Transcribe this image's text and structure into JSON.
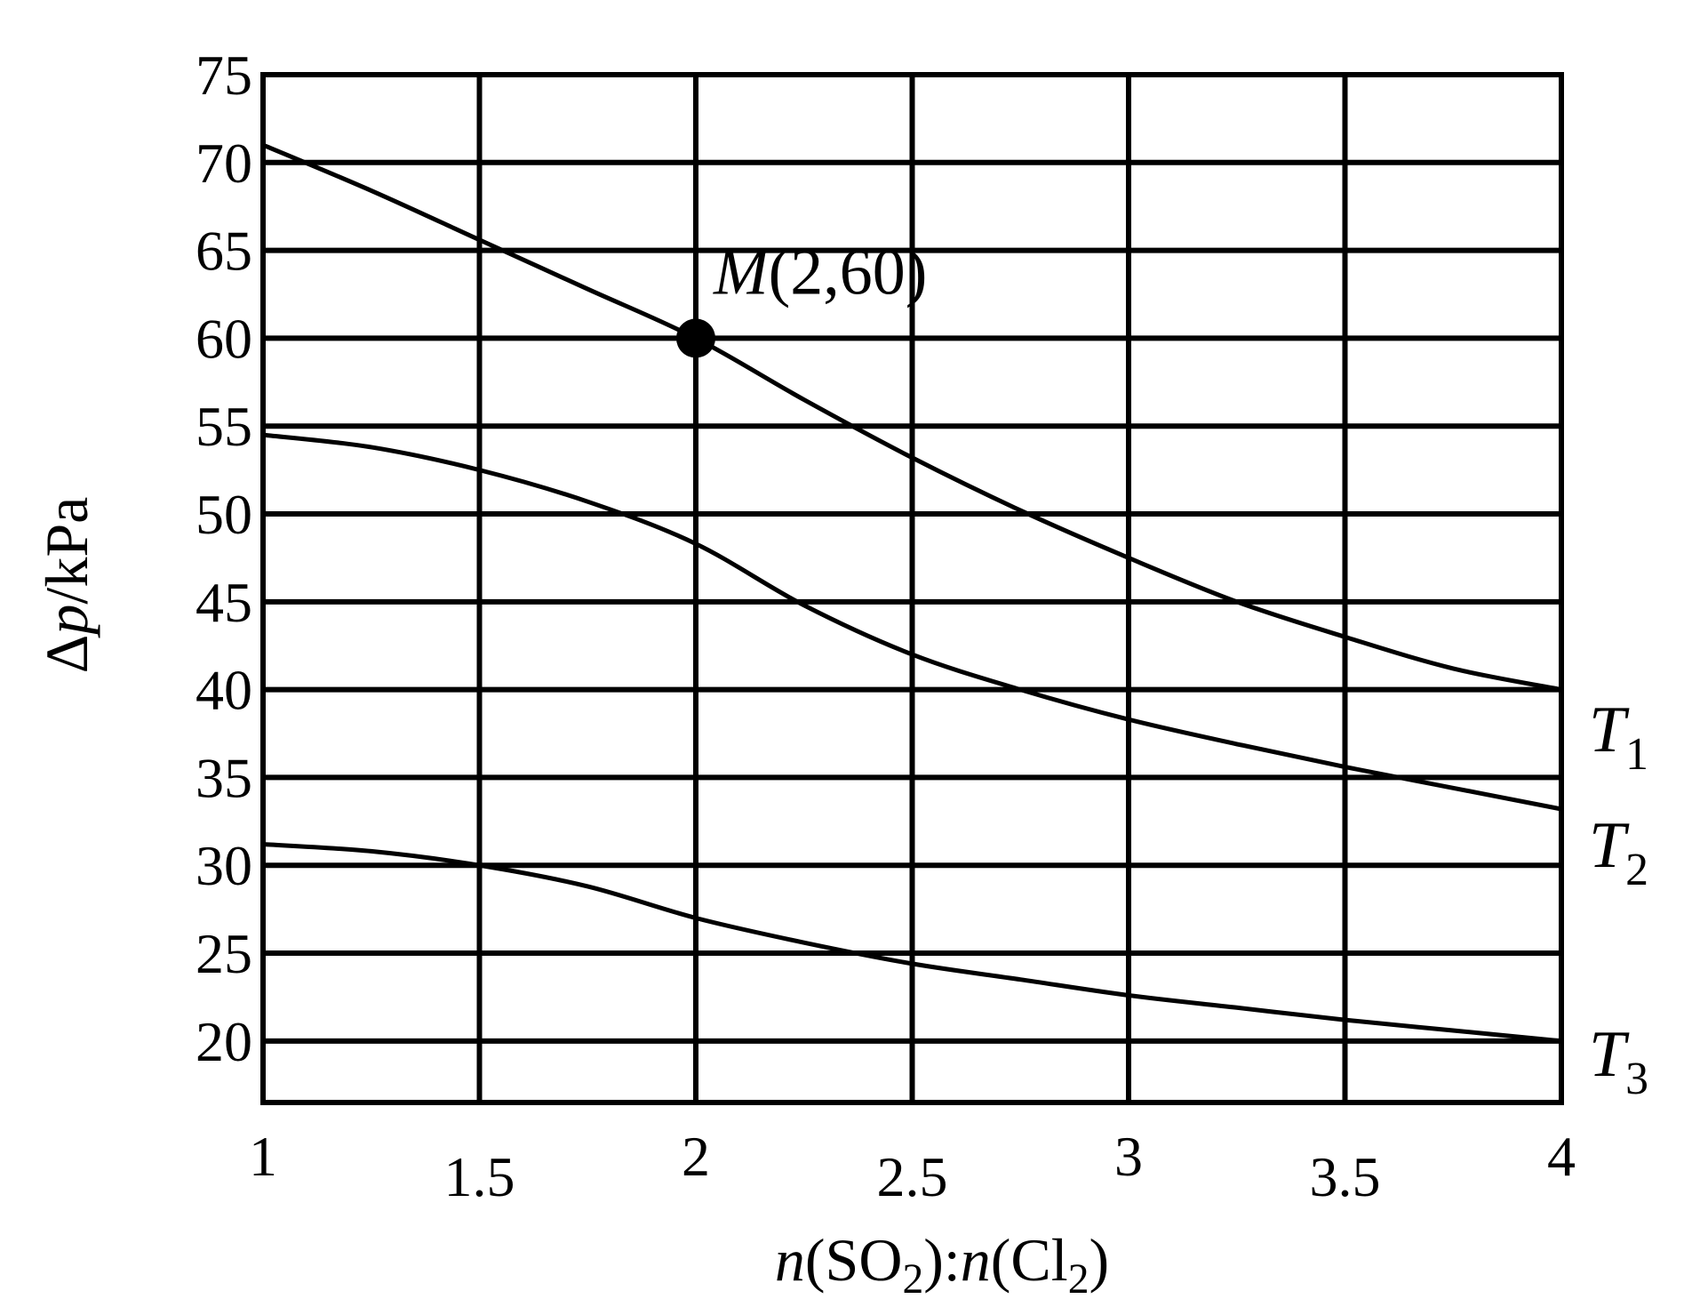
{
  "chart_data": {
    "type": "line",
    "xlabel": {
      "n1": "n",
      "open1": "(SO",
      "sub1": "2",
      "mid": "):",
      "n2": "n",
      "open2": "(Cl",
      "sub2": "2",
      "close": ")"
    },
    "ylabel": {
      "delta": "Δ",
      "p": "p",
      "unit": "/kPa"
    },
    "xlim": [
      1,
      4
    ],
    "ylim": [
      16.5,
      75
    ],
    "xticks": [
      1,
      1.5,
      2,
      2.5,
      3,
      3.5,
      4
    ],
    "xtick_labels": [
      "1",
      "1.5",
      "2",
      "2.5",
      "3",
      "3.5",
      "4"
    ],
    "yticks": [
      20,
      25,
      30,
      35,
      40,
      45,
      50,
      55,
      60,
      65,
      70,
      75
    ],
    "ytick_labels": [
      "20",
      "25",
      "30",
      "35",
      "40",
      "45",
      "50",
      "55",
      "60",
      "65",
      "70",
      "75"
    ],
    "grid": true,
    "series": [
      {
        "name": "T",
        "subscript": "1",
        "x": [
          1,
          1.25,
          1.5,
          1.75,
          2,
          2.25,
          2.5,
          2.75,
          3,
          3.25,
          3.5,
          3.75,
          4
        ],
        "y": [
          71,
          68.4,
          65.6,
          62.8,
          60,
          56.5,
          53.2,
          50.2,
          47.5,
          45.0,
          43.0,
          41.2,
          40
        ]
      },
      {
        "name": "T",
        "subscript": "2",
        "x": [
          1,
          1.25,
          1.5,
          1.75,
          2,
          2.25,
          2.5,
          2.75,
          3,
          3.25,
          3.5,
          3.75,
          4
        ],
        "y": [
          54.5,
          53.8,
          52.5,
          50.7,
          48.3,
          44.8,
          42.0,
          40.0,
          38.3,
          36.9,
          35.6,
          34.4,
          33.2
        ]
      },
      {
        "name": "T",
        "subscript": "3",
        "x": [
          1,
          1.25,
          1.5,
          1.75,
          2,
          2.25,
          2.5,
          2.75,
          3,
          3.25,
          3.5,
          3.75,
          4
        ],
        "y": [
          31.2,
          30.8,
          30.0,
          28.8,
          27.0,
          25.6,
          24.4,
          23.5,
          22.6,
          21.9,
          21.2,
          20.6,
          20
        ]
      }
    ],
    "annotation": {
      "x": 2,
      "y": 60,
      "name": "M",
      "coords": "(2,60)"
    }
  }
}
